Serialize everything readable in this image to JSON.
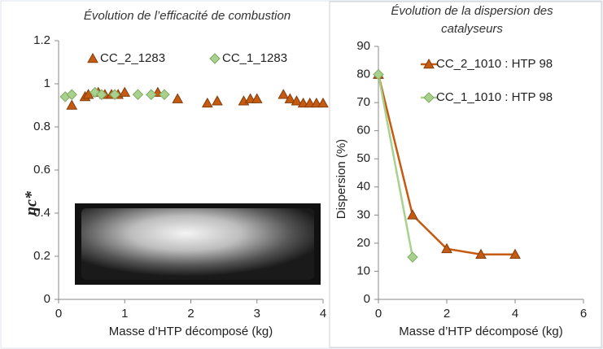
{
  "chart_data": [
    {
      "type": "scatter",
      "title": "Évolution de l’efficacité de combustion",
      "x_label": "Masse d’HTP décomposé (kg)",
      "y_label": "ηc*",
      "xlim": [
        0,
        4
      ],
      "xticks": [
        0,
        1,
        2,
        3,
        4
      ],
      "ylim": [
        0,
        1.2
      ],
      "yticks": [
        0,
        0.2,
        0.4,
        0.6,
        0.8,
        1,
        1.2
      ],
      "legend": "top",
      "series": [
        {
          "name": "CC_2_1283",
          "color": "#c55a11",
          "marker": "triangle",
          "x": [
            0.2,
            0.4,
            0.45,
            0.6,
            0.7,
            0.8,
            0.9,
            1.0,
            1.5,
            1.8,
            2.25,
            2.4,
            2.8,
            2.9,
            3.0,
            3.4,
            3.5,
            3.6,
            3.7,
            3.8,
            3.9,
            4.0
          ],
          "values": [
            0.9,
            0.94,
            0.95,
            0.96,
            0.95,
            0.95,
            0.95,
            0.96,
            0.96,
            0.93,
            0.91,
            0.92,
            0.92,
            0.93,
            0.93,
            0.95,
            0.93,
            0.92,
            0.91,
            0.91,
            0.91,
            0.91
          ]
        },
        {
          "name": "CC_1_1283",
          "color": "#a9d18e",
          "marker": "diamond",
          "x": [
            0.1,
            0.2,
            0.55,
            0.65,
            0.85,
            1.2,
            1.4,
            1.6
          ],
          "values": [
            0.94,
            0.95,
            0.96,
            0.95,
            0.95,
            0.95,
            0.95,
            0.95
          ]
        }
      ]
    },
    {
      "type": "line",
      "title": "Évolution de la dispersion des catalyseurs",
      "x_label": "Masse d’HTP décomposé (kg)",
      "y_label": "Dispersion (%)",
      "xlim": [
        0,
        6
      ],
      "xticks": [
        0,
        2,
        4,
        6
      ],
      "ylim": [
        0,
        90
      ],
      "yticks": [
        0,
        10,
        20,
        30,
        40,
        50,
        60,
        70,
        80,
        90
      ],
      "legend": "top-right",
      "series": [
        {
          "name": "CC_2_1010 : HTP 98",
          "color": "#c55a11",
          "marker": "triangle",
          "x": [
            0,
            1,
            2,
            3,
            4
          ],
          "values": [
            80,
            30,
            18,
            16,
            16
          ]
        },
        {
          "name": "CC_1_1010 : HTP 98",
          "color": "#a9d18e",
          "marker": "diamond",
          "x": [
            0,
            1
          ],
          "values": [
            80,
            15
          ]
        }
      ]
    }
  ]
}
